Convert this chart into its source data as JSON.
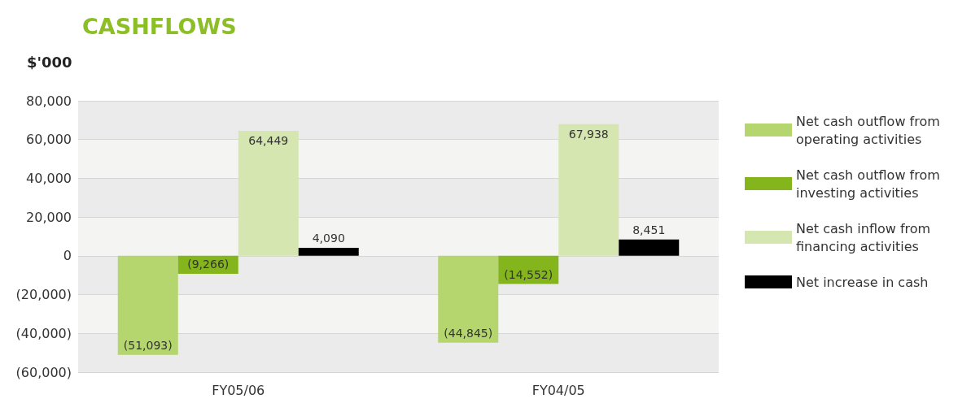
{
  "chart_data": {
    "type": "bar",
    "title": "CASHFLOWS",
    "ylabel": "$'000",
    "categories": [
      "FY05/06",
      "FY04/05"
    ],
    "series": [
      {
        "name": "Net cash outflow from operating activities",
        "color": "#b5d56f",
        "values": [
          -51093,
          -44845
        ],
        "value_labels": [
          "(51,093)",
          "(44,845)"
        ]
      },
      {
        "name": "Net cash outflow from investing activities",
        "color": "#84b51c",
        "values": [
          -9266,
          -14552
        ],
        "value_labels": [
          "(9,266)",
          "(14,552)"
        ]
      },
      {
        "name": "Net cash inflow from financing activities",
        "color": "#d5e6b0",
        "values": [
          64449,
          67938
        ],
        "value_labels": [
          "64,449",
          "67,938"
        ]
      },
      {
        "name": "Net increase in cash",
        "color": "#000000",
        "values": [
          4090,
          8451
        ],
        "value_labels": [
          "4,090",
          "8,451"
        ]
      }
    ],
    "ylim": [
      -60000,
      80000
    ],
    "yticks": [
      {
        "value": -60000,
        "label": "(60,000)"
      },
      {
        "value": -40000,
        "label": "(40,000)"
      },
      {
        "value": -20000,
        "label": "(20,000)"
      },
      0,
      {
        "value": 20000,
        "label": "20,000"
      },
      {
        "value": 40000,
        "label": "40,000"
      },
      {
        "value": 60000,
        "label": "60,000"
      },
      {
        "value": 80000,
        "label": "80,000"
      }
    ],
    "grid": "y",
    "legend": "right"
  }
}
